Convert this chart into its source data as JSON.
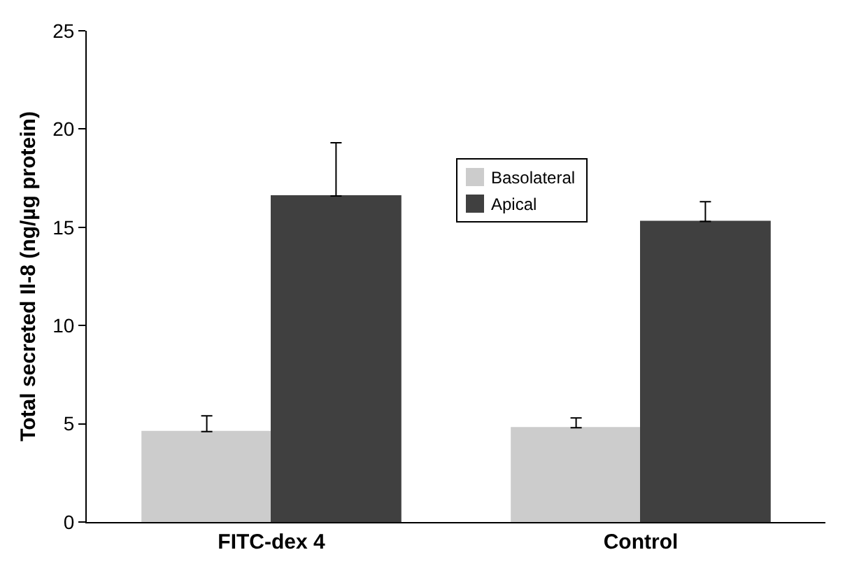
{
  "chart_data": {
    "type": "bar",
    "ylabel": "Total secreted Il-8 (ng/µg protein)",
    "categories": [
      "FITC-dex 4",
      "Control"
    ],
    "series": [
      {
        "name": "Basolateral",
        "color": "#cccccc",
        "values": [
          4.6,
          4.8
        ],
        "errors": [
          [
            4.6,
            5.4
          ],
          [
            4.8,
            5.3
          ]
        ]
      },
      {
        "name": "Apical",
        "color": "#404040",
        "values": [
          16.6,
          15.3
        ],
        "errors": [
          [
            16.6,
            19.3
          ],
          [
            15.3,
            16.3
          ]
        ]
      }
    ],
    "ylim": [
      0,
      25
    ],
    "yticks": [
      0,
      5,
      10,
      15,
      20,
      25
    ],
    "grid": false,
    "legend": "top"
  }
}
